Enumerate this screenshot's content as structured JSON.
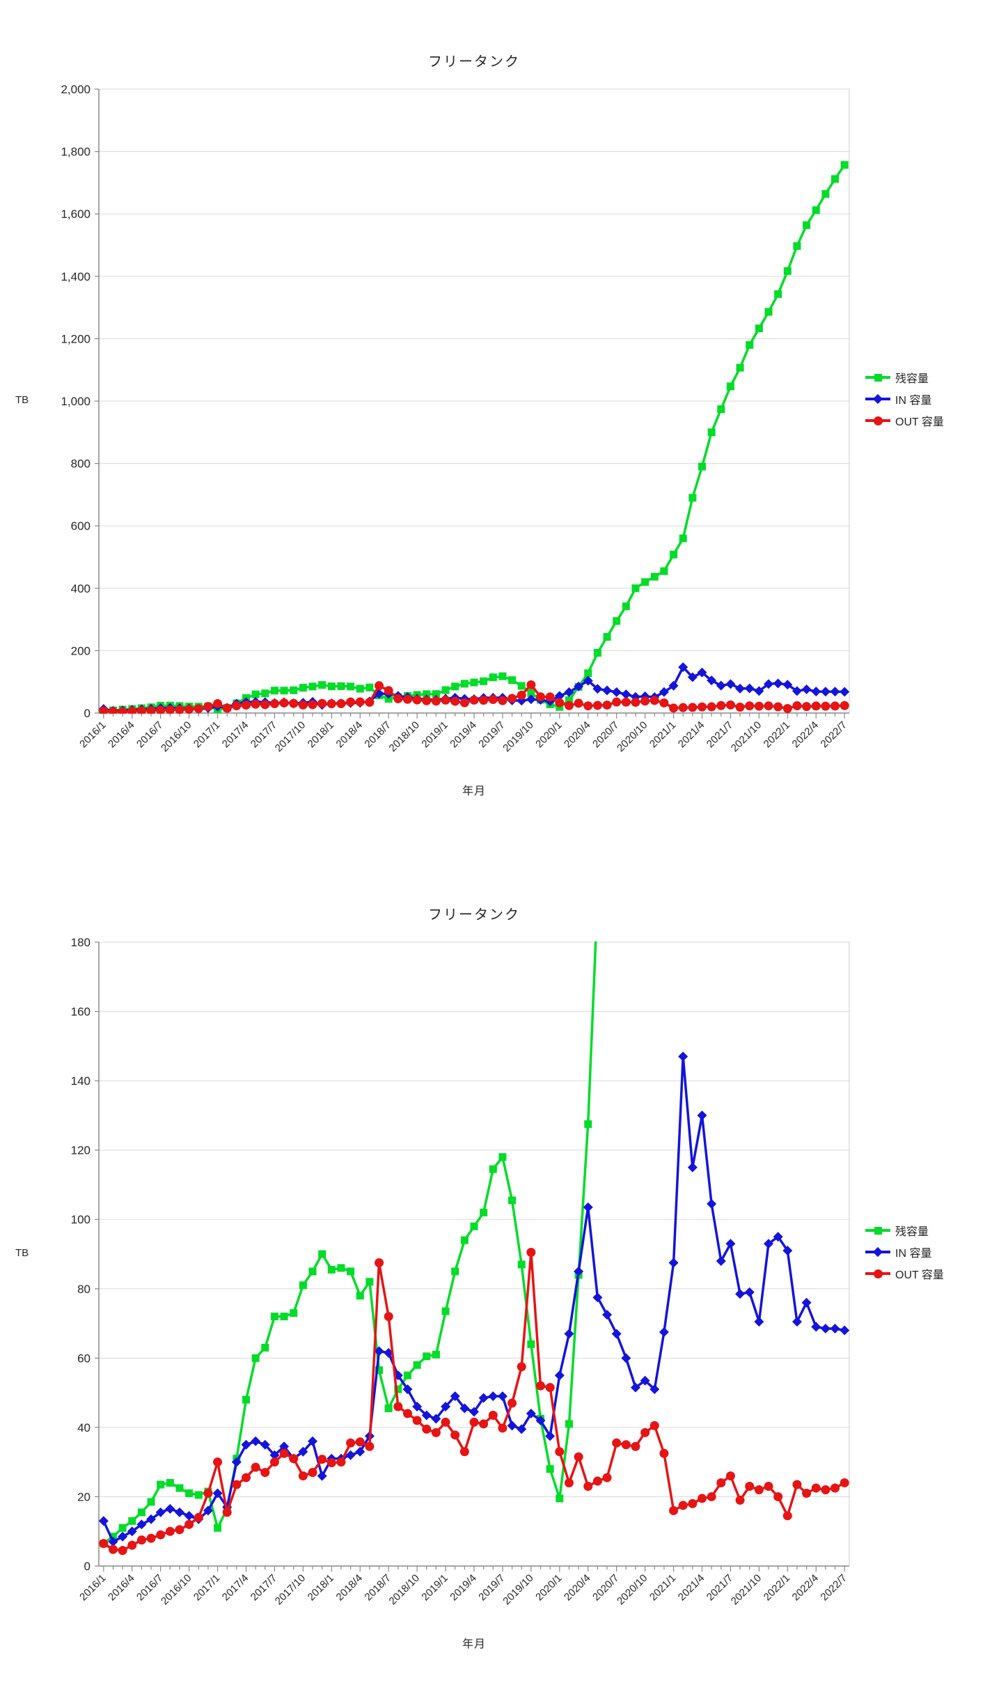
{
  "page": {
    "background": "#ffffff"
  },
  "style": {
    "grid_color": "#d9d9d9",
    "axis_color": "#888888",
    "border_color": "#c8c8c8",
    "text_color": "#262626",
    "line_width": 3.5
  },
  "chart_data": {
    "type": "line",
    "x": [
      "2016/1",
      "2016/2",
      "2016/3",
      "2016/4",
      "2016/5",
      "2016/6",
      "2016/7",
      "2016/8",
      "2016/9",
      "2016/10",
      "2016/11",
      "2016/12",
      "2017/1",
      "2017/2",
      "2017/3",
      "2017/4",
      "2017/5",
      "2017/6",
      "2017/7",
      "2017/8",
      "2017/9",
      "2017/10",
      "2017/11",
      "2017/12",
      "2018/1",
      "2018/2",
      "2018/3",
      "2018/4",
      "2018/5",
      "2018/6",
      "2018/7",
      "2018/8",
      "2018/9",
      "2018/10",
      "2018/11",
      "2018/12",
      "2019/1",
      "2019/2",
      "2019/3",
      "2019/4",
      "2019/5",
      "2019/6",
      "2019/7",
      "2019/8",
      "2019/9",
      "2019/10",
      "2019/11",
      "2019/12",
      "2020/1",
      "2020/2",
      "2020/3",
      "2020/4",
      "2020/5",
      "2020/6",
      "2020/7",
      "2020/8",
      "2020/9",
      "2020/10",
      "2020/11",
      "2020/12",
      "2021/1",
      "2021/2",
      "2021/3",
      "2021/4",
      "2021/5",
      "2021/6",
      "2021/7",
      "2021/8",
      "2021/9",
      "2021/10",
      "2021/11",
      "2021/12",
      "2022/1",
      "2022/2",
      "2022/3",
      "2022/4",
      "2022/5",
      "2022/6",
      "2022/7"
    ],
    "x_label_every": 3,
    "series": [
      {
        "name": "残容量",
        "color": "#00dc28",
        "marker": "square",
        "values": [
          6.5,
          8.5,
          11,
          13,
          15.5,
          18.5,
          23.5,
          24,
          22.5,
          21,
          20.5,
          21.5,
          11,
          16.5,
          31,
          48,
          60,
          63,
          72,
          72,
          73,
          81,
          85,
          90,
          85.5,
          86,
          85,
          78,
          82,
          56.5,
          45.5,
          51,
          55,
          58,
          60.5,
          61,
          73.5,
          85,
          94,
          98,
          102,
          114.5,
          118,
          105.5,
          87,
          64,
          42.5,
          28,
          19.5,
          41,
          84,
          127.5,
          193,
          244,
          295,
          342,
          400,
          420,
          437,
          455,
          508,
          560,
          690,
          790,
          900,
          974,
          1047,
          1107,
          1180,
          1233,
          1286,
          1343,
          1417,
          1497,
          1564,
          1612,
          1664,
          1712,
          1757
        ]
      },
      {
        "name": "IN 容量",
        "color": "#1414dc",
        "marker": "diamond",
        "values": [
          13,
          7,
          8.5,
          10,
          12,
          13.5,
          15.5,
          16.5,
          15.5,
          14.5,
          13.5,
          16,
          21,
          17,
          30,
          35,
          36,
          35,
          32,
          34.5,
          31,
          33,
          36,
          26,
          31,
          31,
          32,
          33,
          37.5,
          62,
          61.5,
          55,
          51,
          46,
          43.5,
          42.5,
          46,
          49,
          45.5,
          44.5,
          48.5,
          49,
          49,
          40.5,
          39.5,
          44,
          42,
          37.5,
          55,
          67,
          85,
          103.5,
          77.5,
          72.5,
          67,
          60,
          51.5,
          53.5,
          51,
          67.5,
          87.5,
          147,
          115,
          130,
          104.5,
          88,
          93,
          78.5,
          79,
          70.5,
          93,
          95,
          91,
          70.5,
          76,
          69,
          68.5,
          68.5,
          68
        ]
      },
      {
        "name": "OUT 容量",
        "color": "#e61414",
        "marker": "circle",
        "values": [
          6.5,
          4.8,
          4.5,
          6,
          7.5,
          8,
          9,
          10,
          10.5,
          12,
          14,
          21,
          30,
          15.5,
          23.5,
          25.5,
          28.5,
          27,
          30,
          32.5,
          31,
          26,
          27,
          30.8,
          29.8,
          30,
          35.5,
          35.8,
          34.5,
          87.5,
          72,
          46,
          44,
          42,
          39.5,
          38.5,
          41.5,
          37.8,
          33,
          41.5,
          41,
          43.5,
          39.8,
          47,
          57.5,
          90.5,
          52,
          51.5,
          33,
          24,
          31.5,
          23,
          24.5,
          25.5,
          35.5,
          35,
          34.5,
          38.5,
          40.5,
          32.5,
          16,
          17.5,
          18,
          19.5,
          20,
          24,
          26,
          19,
          23,
          22,
          23,
          20,
          14.5,
          23.5,
          21,
          22.5,
          22,
          22.5,
          24
        ]
      }
    ],
    "charts": [
      {
        "title": "フリータンク",
        "xlabel": "年月",
        "ylabel": "TB",
        "ylim": [
          0,
          2000
        ],
        "ytick_step": 200,
        "ytick_format": "comma",
        "grid": "horizontal",
        "legend_position": "right-middle",
        "clipped": false
      },
      {
        "title": "フリータンク",
        "xlabel": "年月",
        "ylabel": "TB",
        "ylim": [
          0,
          180
        ],
        "ytick_step": 20,
        "ytick_format": "plain",
        "grid": "horizontal",
        "legend_position": "right-middle",
        "clipped": true
      }
    ]
  }
}
